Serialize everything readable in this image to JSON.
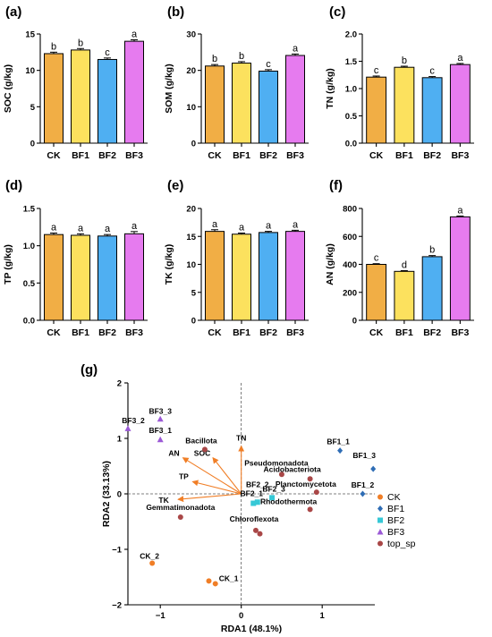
{
  "chart_data": [
    {
      "type": "bar",
      "panel": "(a)",
      "ylabel": "SOC (g/kg)",
      "categories": [
        "CK",
        "BF1",
        "BF2",
        "BF3"
      ],
      "values": [
        12.3,
        12.8,
        11.5,
        14.0
      ],
      "errors": [
        0.2,
        0.2,
        0.2,
        0.2
      ],
      "letters": [
        "b",
        "b",
        "c",
        "a"
      ],
      "ylim": [
        0,
        15
      ],
      "yticks": [
        "0",
        "5",
        "10",
        "15"
      ]
    },
    {
      "type": "bar",
      "panel": "(b)",
      "ylabel": "SOM (g/kg)",
      "categories": [
        "CK",
        "BF1",
        "BF2",
        "BF3"
      ],
      "values": [
        21.2,
        22.0,
        19.8,
        24.1
      ],
      "errors": [
        0.4,
        0.4,
        0.4,
        0.4
      ],
      "letters": [
        "b",
        "b",
        "c",
        "a"
      ],
      "ylim": [
        0,
        30
      ],
      "yticks": [
        "0",
        "10",
        "20",
        "30"
      ]
    },
    {
      "type": "bar",
      "panel": "(c)",
      "ylabel": "TN (g/kg)",
      "categories": [
        "CK",
        "BF1",
        "BF2",
        "BF3"
      ],
      "values": [
        1.21,
        1.39,
        1.2,
        1.44
      ],
      "errors": [
        0.02,
        0.02,
        0.02,
        0.02
      ],
      "letters": [
        "c",
        "b",
        "c",
        "a"
      ],
      "ylim": [
        0,
        2.0
      ],
      "yticks": [
        "0.0",
        "0.5",
        "1.0",
        "1.5",
        "2.0"
      ]
    },
    {
      "type": "bar",
      "panel": "(d)",
      "ylabel": "TP (g/kg)",
      "categories": [
        "CK",
        "BF1",
        "BF2",
        "BF3"
      ],
      "values": [
        1.15,
        1.14,
        1.13,
        1.16
      ],
      "errors": [
        0.02,
        0.02,
        0.02,
        0.03
      ],
      "letters": [
        "a",
        "a",
        "a",
        "a"
      ],
      "ylim": [
        0,
        1.5
      ],
      "yticks": [
        "0.0",
        "0.5",
        "1.0",
        "1.5"
      ]
    },
    {
      "type": "bar",
      "panel": "(e)",
      "ylabel": "TK (g/kg)",
      "categories": [
        "CK",
        "BF1",
        "BF2",
        "BF3"
      ],
      "values": [
        15.9,
        15.4,
        15.7,
        15.9
      ],
      "errors": [
        0.3,
        0.2,
        0.2,
        0.2
      ],
      "letters": [
        "a",
        "a",
        "a",
        "a"
      ],
      "ylim": [
        0,
        20
      ],
      "yticks": [
        "0",
        "5",
        "10",
        "15",
        "20"
      ]
    },
    {
      "type": "bar",
      "panel": "(f)",
      "ylabel": "AN (g/kg)",
      "categories": [
        "CK",
        "BF1",
        "BF2",
        "BF3"
      ],
      "values": [
        400,
        350,
        455,
        740
      ],
      "errors": [
        5,
        5,
        8,
        6
      ],
      "letters": [
        "c",
        "d",
        "b",
        "a"
      ],
      "ylim": [
        0,
        800
      ],
      "yticks": [
        "0",
        "200",
        "400",
        "600",
        "800"
      ]
    },
    {
      "type": "scatter",
      "panel": "(g)",
      "xlabel": "RDA1 (48.1%)",
      "ylabel": "RDA2 (33.13%)",
      "xlim": [
        -1.4,
        1.65
      ],
      "ylim": [
        -2,
        2
      ],
      "xticks": [
        -1,
        0,
        1
      ],
      "yticks": [
        -2,
        -1,
        0,
        1,
        2
      ],
      "groups": [
        {
          "name": "CK",
          "color": "#F07E26",
          "marker": "circle",
          "points": [
            {
              "label": "CK_1",
              "x": -0.32,
              "y": -1.62
            },
            {
              "label": "CK_2",
              "x": -1.1,
              "y": -1.25
            },
            {
              "label": "",
              "x": -0.4,
              "y": -1.57
            }
          ]
        },
        {
          "name": "BF1",
          "color": "#2F6DB5",
          "marker": "diamond",
          "points": [
            {
              "label": "BF1_1",
              "x": 1.22,
              "y": 0.78
            },
            {
              "label": "BF1_3",
              "x": 1.63,
              "y": 0.45
            },
            {
              "label": "BF1_2",
              "x": 1.5,
              "y": 0.0
            }
          ]
        },
        {
          "name": "BF2",
          "color": "#36C8D6",
          "marker": "square",
          "points": [
            {
              "label": "BF2_1",
              "x": 0.15,
              "y": -0.17
            },
            {
              "label": "BF2_3",
              "x": 0.38,
              "y": -0.07
            },
            {
              "label": "BF2_2",
              "x": 0.2,
              "y": -0.15
            }
          ]
        },
        {
          "name": "BF3",
          "color": "#9B59D6",
          "marker": "triangle",
          "points": [
            {
              "label": "BF3_3",
              "x": -1.0,
              "y": 1.35
            },
            {
              "label": "BF3_2",
              "x": -1.4,
              "y": 1.18
            },
            {
              "label": "BF3_1",
              "x": -1.0,
              "y": 0.98
            }
          ]
        },
        {
          "name": "top_sp",
          "color": "#A94747",
          "marker": "circle",
          "points": [
            {
              "label": "Gemmatimonadota",
              "x": -0.75,
              "y": -0.42
            },
            {
              "label": "Bacillota",
              "x": -0.45,
              "y": 0.8
            },
            {
              "label": "Pseudomonadota",
              "x": 0.5,
              "y": 0.35
            },
            {
              "label": "Acidobacteriota",
              "x": 0.85,
              "y": 0.27
            },
            {
              "label": "Planctomycetota",
              "x": 0.93,
              "y": 0.03
            },
            {
              "label": "Rhodothermota",
              "x": 0.85,
              "y": -0.28
            },
            {
              "label": "Chloroflexota",
              "x": 0.18,
              "y": -0.66
            },
            {
              "label": "",
              "x": 0.23,
              "y": -0.72
            }
          ]
        }
      ],
      "arrows": [
        {
          "label": "AN",
          "x": -0.72,
          "y": 0.65
        },
        {
          "label": "SOC",
          "x": -0.35,
          "y": 0.65
        },
        {
          "label": "TN",
          "x": 0.0,
          "y": 0.86
        },
        {
          "label": "TP",
          "x": -0.6,
          "y": 0.22
        },
        {
          "label": "TK",
          "x": -0.78,
          "y": -0.1
        }
      ]
    }
  ]
}
